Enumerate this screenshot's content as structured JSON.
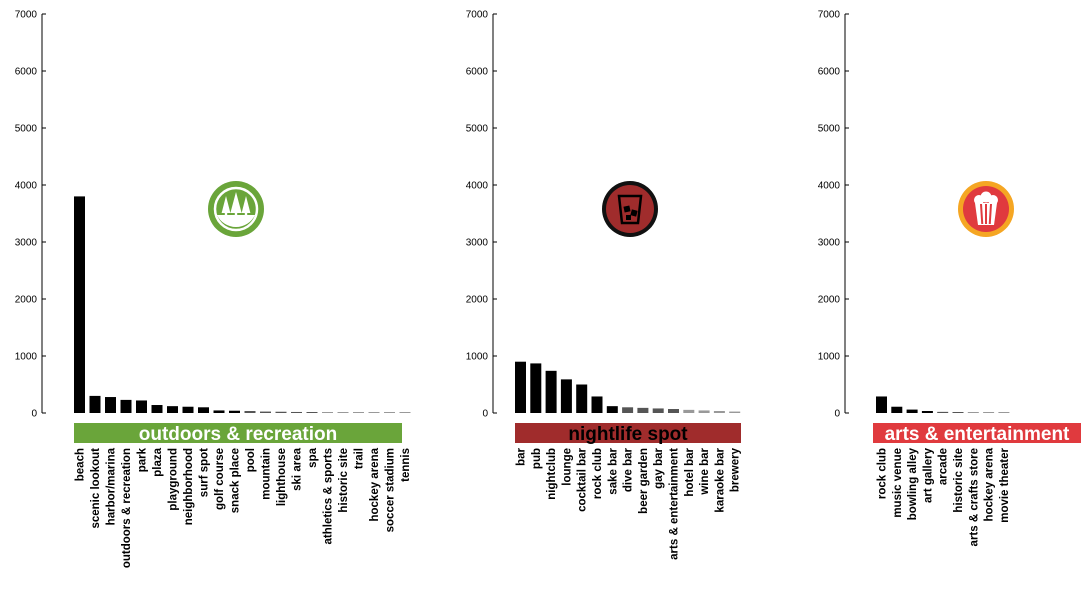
{
  "chart_data": [
    {
      "type": "bar",
      "title": "outdoors & recreation",
      "ylim": [
        0,
        7000
      ],
      "yticks": [
        "0",
        "1000",
        "2000",
        "3000",
        "4000",
        "5000",
        "6000",
        "7000"
      ],
      "banner_color": "#6aa53a",
      "banner_text_color": "#ffffff",
      "icon": "trees-icon",
      "icon_color": "#6aa53a",
      "categories": [
        "beach",
        "scenic lookout",
        "harbor/marina",
        "outdoors & recreation",
        "park",
        "plaza",
        "playground",
        "neighborhood",
        "surf spot",
        "golf course",
        "snack place",
        "pool",
        "mountain",
        "lighthouse",
        "ski area",
        "spa",
        "athletics & sports",
        "historic site",
        "trail",
        "hockey arena",
        "soccer stadium",
        "tennis"
      ],
      "values": [
        3800,
        300,
        280,
        230,
        220,
        140,
        120,
        110,
        100,
        45,
        40,
        35,
        25,
        22,
        18,
        16,
        14,
        12,
        10,
        8,
        6,
        5
      ]
    },
    {
      "type": "bar",
      "title": "nightlife spot",
      "ylim": [
        0,
        7000
      ],
      "yticks": [
        "0",
        "1000",
        "2000",
        "3000",
        "4000",
        "5000",
        "6000",
        "7000"
      ],
      "banner_color": "#a02c2c",
      "banner_text_color": "#000000",
      "icon": "cocktail-glass-icon",
      "icon_color": "#a02c2c",
      "categories": [
        "bar",
        "pub",
        "nightclub",
        "lounge",
        "cocktail bar",
        "rock club",
        "sake bar",
        "dive bar",
        "beer garden",
        "gay bar",
        "arts & entertainment",
        "hotel bar",
        "wine bar",
        "karaoke bar",
        "brewery"
      ],
      "values": [
        900,
        870,
        740,
        590,
        500,
        290,
        120,
        100,
        90,
        80,
        70,
        55,
        45,
        35,
        25
      ]
    },
    {
      "type": "bar",
      "title": "arts & entertainment",
      "ylim": [
        0,
        7000
      ],
      "yticks": [
        "0",
        "1000",
        "2000",
        "3000",
        "4000",
        "5000",
        "6000",
        "7000"
      ],
      "banner_color": "#e03a3e",
      "banner_text_color": "#ffffff",
      "icon": "popcorn-icon",
      "icon_color": "#f5a623",
      "categories": [
        "rock club",
        "music venue",
        "bowling alley",
        "art gallery",
        "arcade",
        "historic site",
        "arts & crafts store",
        "hockey arena",
        "movie theater"
      ],
      "values": [
        290,
        110,
        60,
        35,
        20,
        15,
        12,
        10,
        8
      ]
    }
  ]
}
